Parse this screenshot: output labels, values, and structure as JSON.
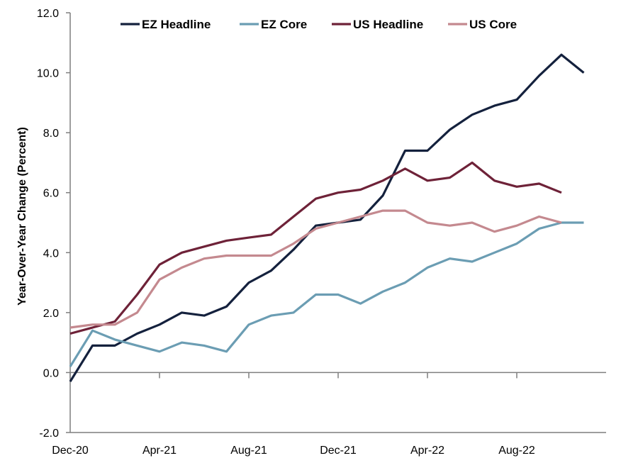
{
  "chart_data": {
    "type": "line",
    "ylabel": "Year-Over-Year Change (Percent)",
    "xlabel": "",
    "ylim": [
      -2.0,
      12.0
    ],
    "yticks": [
      "-2.0",
      "0.0",
      "2.0",
      "4.0",
      "6.0",
      "8.0",
      "10.0",
      "12.0"
    ],
    "x": [
      "Dec-20",
      "Jan-21",
      "Feb-21",
      "Mar-21",
      "Apr-21",
      "May-21",
      "Jun-21",
      "Jul-21",
      "Aug-21",
      "Sep-21",
      "Oct-21",
      "Nov-21",
      "Dec-21",
      "Jan-22",
      "Feb-22",
      "Mar-22",
      "Apr-22",
      "May-22",
      "Jun-22",
      "Jul-22",
      "Aug-22",
      "Sep-22",
      "Oct-22",
      "Nov-22",
      "Dec-22"
    ],
    "xticks": [
      "Dec-20",
      "Apr-21",
      "Aug-21",
      "Dec-21",
      "Apr-22",
      "Aug-22"
    ],
    "legend_position": "top",
    "grid": false,
    "series": [
      {
        "name": "EZ Headline",
        "color": "#14213d",
        "values": [
          -0.3,
          0.9,
          0.9,
          1.3,
          1.6,
          2.0,
          1.9,
          2.2,
          3.0,
          3.4,
          4.1,
          4.9,
          5.0,
          5.1,
          5.9,
          7.4,
          7.4,
          8.1,
          8.6,
          8.9,
          9.1,
          9.9,
          10.6,
          10.0,
          null
        ]
      },
      {
        "name": "EZ Core",
        "color": "#6b9db3",
        "values": [
          0.2,
          1.4,
          1.1,
          0.9,
          0.7,
          1.0,
          0.9,
          0.7,
          1.6,
          1.9,
          2.0,
          2.6,
          2.6,
          2.3,
          2.7,
          3.0,
          3.5,
          3.8,
          3.7,
          4.0,
          4.3,
          4.8,
          5.0,
          5.0,
          null
        ]
      },
      {
        "name": "US Headline",
        "color": "#6e2238",
        "values": [
          1.3,
          1.5,
          1.7,
          2.6,
          3.6,
          4.0,
          4.2,
          4.4,
          4.5,
          4.6,
          5.2,
          5.8,
          6.0,
          6.1,
          6.4,
          6.8,
          6.4,
          6.5,
          7.0,
          6.4,
          6.2,
          6.3,
          6.0,
          null,
          null
        ]
      },
      {
        "name": "US Core",
        "color": "#c4898f",
        "values": [
          1.5,
          1.6,
          1.6,
          2.0,
          3.1,
          3.5,
          3.8,
          3.9,
          3.9,
          3.9,
          4.3,
          4.8,
          5.0,
          5.2,
          5.4,
          5.4,
          5.0,
          4.9,
          5.0,
          4.7,
          4.9,
          5.2,
          5.0,
          null,
          null
        ]
      }
    ]
  }
}
